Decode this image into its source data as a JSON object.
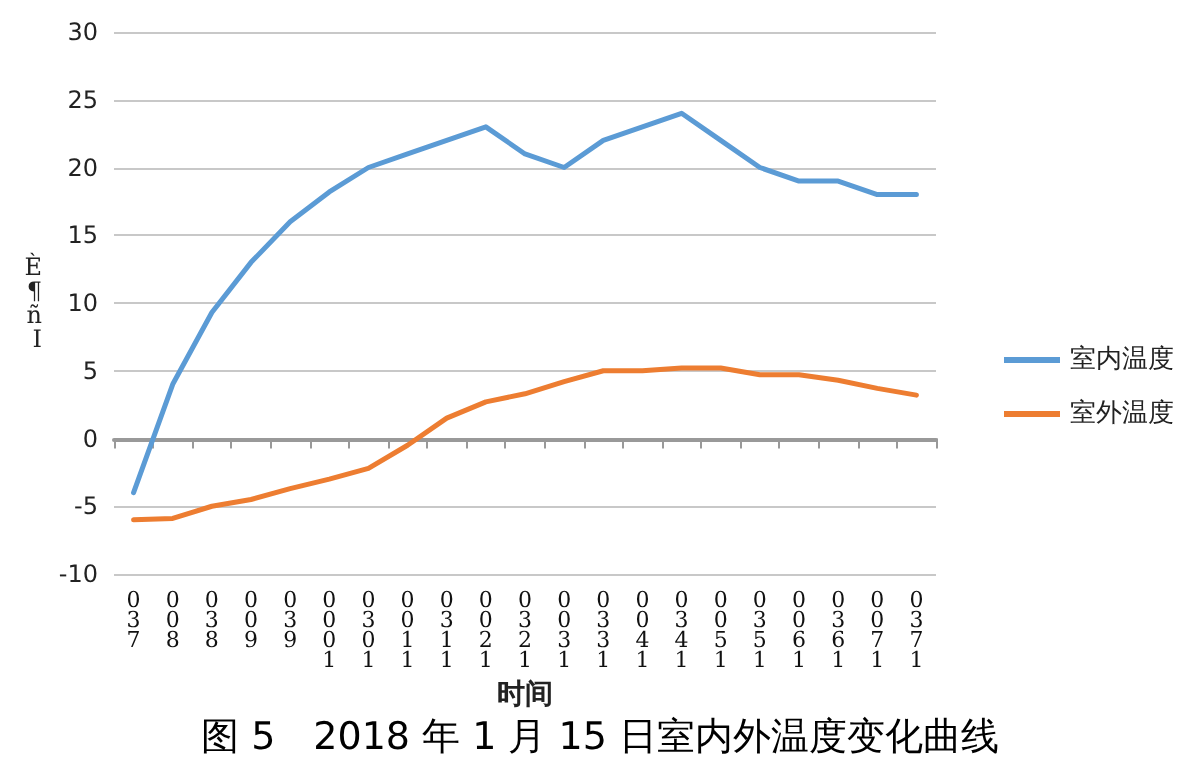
{
  "chart_data": {
    "type": "line",
    "title": "图 5　2018 年 1 月 15 日室内外温度变化曲线",
    "xlabel": "时间",
    "ylabel": "È¶ñI",
    "categories": [
      "0\n3\n7",
      "0\n0\n8",
      "0\n3\n8",
      "0\n0\n9",
      "0\n3\n9",
      "0\n0\n0\n1",
      "0\n3\n0\n1",
      "0\n0\n1\n1",
      "0\n3\n1\n1",
      "0\n0\n2\n1",
      "0\n3\n2\n1",
      "0\n0\n3\n1",
      "0\n3\n3\n1",
      "0\n0\n4\n1",
      "0\n3\n4\n1",
      "0\n0\n5\n1",
      "0\n3\n5\n1",
      "0\n0\n6\n1",
      "0\n3\n6\n1",
      "0\n0\n7\n1",
      "0\n3\n7\n1"
    ],
    "series": [
      {
        "name": "室内温度",
        "color": "#5b9bd5",
        "values": [
          -4,
          4,
          9.3,
          13,
          16,
          18.2,
          20,
          21,
          22,
          23,
          21,
          20,
          22,
          23,
          24,
          22,
          20,
          19,
          19,
          18,
          18
        ]
      },
      {
        "name": "室外温度",
        "color": "#ed7d31",
        "values": [
          -6,
          -5.9,
          -5,
          -4.5,
          -3.7,
          -3,
          -2.2,
          -0.5,
          1.5,
          2.7,
          3.3,
          4.2,
          5,
          5,
          5.2,
          5.2,
          4.7,
          4.7,
          4.3,
          3.7,
          3.2
        ]
      }
    ],
    "ylim": [
      -10,
      30
    ],
    "yticks": [
      -10,
      -5,
      0,
      5,
      10,
      15,
      20,
      25,
      30
    ],
    "grid": "y",
    "legend": "right",
    "marker": "none",
    "line_style": "solid"
  }
}
